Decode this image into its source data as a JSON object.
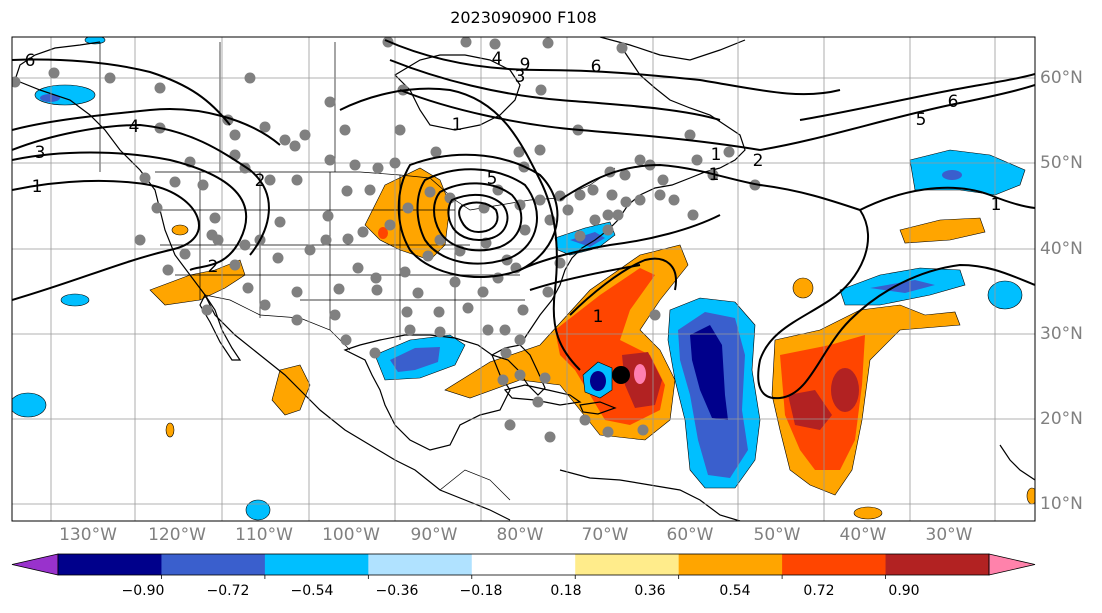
{
  "title": "2023090900 F108",
  "map": {
    "lon_labels": [
      "130°W",
      "120°W",
      "110°W",
      "100°W",
      "90°W",
      "80°W",
      "70°W",
      "60°W",
      "50°W",
      "40°W",
      "30°W"
    ],
    "lat_labels": [
      "60°N",
      "50°N",
      "40°N",
      "30°N",
      "20°N",
      "10°N"
    ],
    "contour_labels": [
      "6",
      "4",
      "3",
      "1",
      "2",
      "1",
      "2",
      "5",
      "1",
      "4",
      "3",
      "6",
      "9",
      "1",
      "2",
      "1",
      "5",
      "6",
      "1"
    ],
    "grid": true,
    "anomaly_colors": {
      "strong_negative": "#00008b",
      "negative": "#3a5fcd",
      "weak_negative": "#00bfff",
      "weak_positive": "#ffa500",
      "positive": "#ff4500",
      "strong_positive": "#b22222",
      "max_positive": "#ff7fb0"
    },
    "storm_marker_color": "#000000",
    "station_marker_color": "#808080"
  },
  "colorbar": {
    "ticks": [
      "−0.90",
      "−0.72",
      "−0.54",
      "−0.36",
      "−0.18",
      "0.18",
      "0.36",
      "0.54",
      "0.72",
      "0.90"
    ],
    "colors": [
      "#9932cc",
      "#00008b",
      "#3a5fcd",
      "#00bfff",
      "#b0e2ff",
      "#ffffff",
      "#ffec8b",
      "#ffa500",
      "#ff4500",
      "#b22222",
      "#ff82ab"
    ],
    "extend": "both"
  }
}
